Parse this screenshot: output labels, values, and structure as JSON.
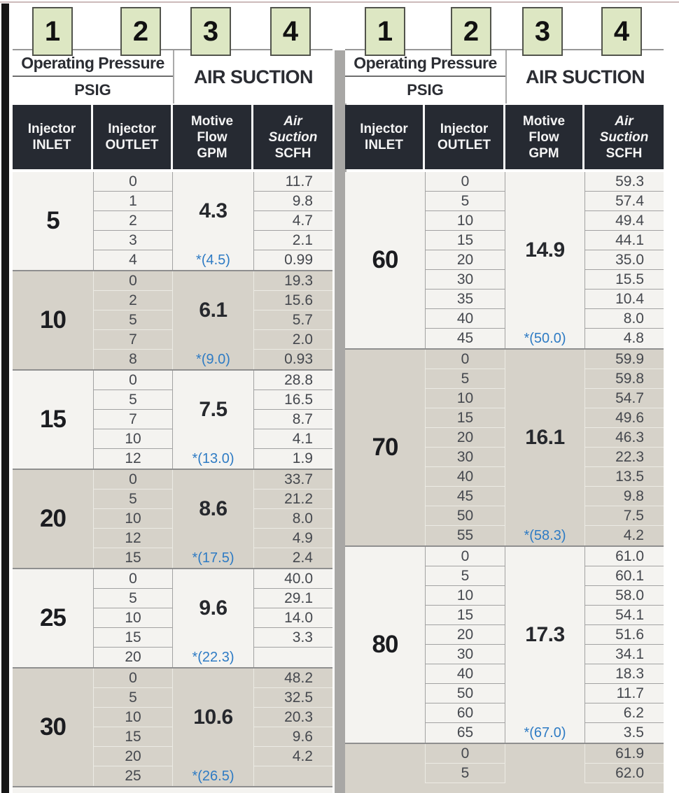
{
  "badges": [
    "1",
    "2",
    "3",
    "4"
  ],
  "colors": {
    "badge_fill": "#dde7c3",
    "badge_border": "#52544c",
    "dark_header": "#262a32",
    "group_light": "#f4f3f0",
    "group_shade": "#d6d2c9",
    "star_blue": "#2e7bc4",
    "divider_gray": "#a8a7a5"
  },
  "tables": [
    {
      "header": {
        "operating_pressure": "Operating Pressure",
        "psig": "PSIG",
        "air_suction": "AIR SUCTION",
        "columns": [
          {
            "lines": [
              "Injector",
              "INLET"
            ]
          },
          {
            "lines": [
              "Injector",
              "OUTLET"
            ]
          },
          {
            "lines": [
              "Motive",
              "Flow",
              "GPM"
            ]
          },
          {
            "lines": [
              "Air",
              "Suction",
              "SCFH"
            ]
          }
        ]
      },
      "groups": [
        {
          "inlet": "5",
          "gpm": "4.3",
          "star": "*(4.5)",
          "rows": [
            {
              "outlet": "0",
              "scfh": "11.7"
            },
            {
              "outlet": "1",
              "scfh": "9.8"
            },
            {
              "outlet": "2",
              "scfh": "4.7"
            },
            {
              "outlet": "3",
              "scfh": "2.1"
            },
            {
              "outlet": "4",
              "scfh": "0.99"
            }
          ]
        },
        {
          "inlet": "10",
          "gpm": "6.1",
          "star": "*(9.0)",
          "rows": [
            {
              "outlet": "0",
              "scfh": "19.3"
            },
            {
              "outlet": "2",
              "scfh": "15.6"
            },
            {
              "outlet": "5",
              "scfh": "5.7"
            },
            {
              "outlet": "7",
              "scfh": "2.0"
            },
            {
              "outlet": "8",
              "scfh": "0.93"
            }
          ]
        },
        {
          "inlet": "15",
          "gpm": "7.5",
          "star": "*(13.0)",
          "rows": [
            {
              "outlet": "0",
              "scfh": "28.8"
            },
            {
              "outlet": "5",
              "scfh": "16.5"
            },
            {
              "outlet": "7",
              "scfh": "8.7"
            },
            {
              "outlet": "10",
              "scfh": "4.1"
            },
            {
              "outlet": "12",
              "scfh": "1.9"
            }
          ]
        },
        {
          "inlet": "20",
          "gpm": "8.6",
          "star": "*(17.5)",
          "rows": [
            {
              "outlet": "0",
              "scfh": "33.7"
            },
            {
              "outlet": "5",
              "scfh": "21.2"
            },
            {
              "outlet": "10",
              "scfh": "8.0"
            },
            {
              "outlet": "12",
              "scfh": "4.9"
            },
            {
              "outlet": "15",
              "scfh": "2.4"
            }
          ]
        },
        {
          "inlet": "25",
          "gpm": "9.6",
          "star": "*(22.3)",
          "rows": [
            {
              "outlet": "0",
              "scfh": "40.0"
            },
            {
              "outlet": "5",
              "scfh": "29.1"
            },
            {
              "outlet": "10",
              "scfh": "14.0"
            },
            {
              "outlet": "15",
              "scfh": "3.3"
            },
            {
              "outlet": "20",
              "scfh": ""
            }
          ]
        },
        {
          "inlet": "30",
          "gpm": "10.6",
          "star": "*(26.5)",
          "rows": [
            {
              "outlet": "0",
              "scfh": "48.2"
            },
            {
              "outlet": "5",
              "scfh": "32.5"
            },
            {
              "outlet": "10",
              "scfh": "20.3"
            },
            {
              "outlet": "15",
              "scfh": "9.6"
            },
            {
              "outlet": "20",
              "scfh": "4.2"
            },
            {
              "outlet": "25",
              "scfh": ""
            }
          ]
        }
      ]
    },
    {
      "header": {
        "operating_pressure": "Operating Pressure",
        "psig": "PSIG",
        "air_suction": "AIR SUCTION",
        "columns": [
          {
            "lines": [
              "Injector",
              "INLET"
            ]
          },
          {
            "lines": [
              "Injector",
              "OUTLET"
            ]
          },
          {
            "lines": [
              "Motive",
              "Flow",
              "GPM"
            ]
          },
          {
            "lines": [
              "Air",
              "Suction",
              "SCFH"
            ]
          }
        ]
      },
      "groups": [
        {
          "inlet": "60",
          "gpm": "14.9",
          "star": "*(50.0)",
          "rows": [
            {
              "outlet": "0",
              "scfh": "59.3"
            },
            {
              "outlet": "5",
              "scfh": "57.4"
            },
            {
              "outlet": "10",
              "scfh": "49.4"
            },
            {
              "outlet": "15",
              "scfh": "44.1"
            },
            {
              "outlet": "20",
              "scfh": "35.0"
            },
            {
              "outlet": "30",
              "scfh": "15.5"
            },
            {
              "outlet": "35",
              "scfh": "10.4"
            },
            {
              "outlet": "40",
              "scfh": "8.0"
            },
            {
              "outlet": "45",
              "scfh": "4.8"
            }
          ]
        },
        {
          "inlet": "70",
          "gpm": "16.1",
          "star": "*(58.3)",
          "rows": [
            {
              "outlet": "0",
              "scfh": "59.9"
            },
            {
              "outlet": "5",
              "scfh": "59.8"
            },
            {
              "outlet": "10",
              "scfh": "54.7"
            },
            {
              "outlet": "15",
              "scfh": "49.6"
            },
            {
              "outlet": "20",
              "scfh": "46.3"
            },
            {
              "outlet": "30",
              "scfh": "22.3"
            },
            {
              "outlet": "40",
              "scfh": "13.5"
            },
            {
              "outlet": "45",
              "scfh": "9.8"
            },
            {
              "outlet": "50",
              "scfh": "7.5"
            },
            {
              "outlet": "55",
              "scfh": "4.2"
            }
          ]
        },
        {
          "inlet": "80",
          "gpm": "17.3",
          "star": "*(67.0)",
          "rows": [
            {
              "outlet": "0",
              "scfh": "61.0"
            },
            {
              "outlet": "5",
              "scfh": "60.1"
            },
            {
              "outlet": "10",
              "scfh": "58.0"
            },
            {
              "outlet": "15",
              "scfh": "54.1"
            },
            {
              "outlet": "20",
              "scfh": "51.6"
            },
            {
              "outlet": "30",
              "scfh": "34.1"
            },
            {
              "outlet": "40",
              "scfh": "18.3"
            },
            {
              "outlet": "50",
              "scfh": "11.7"
            },
            {
              "outlet": "60",
              "scfh": "6.2"
            },
            {
              "outlet": "65",
              "scfh": "3.5"
            }
          ]
        },
        {
          "inlet": "",
          "gpm": "",
          "star": "",
          "partial": true,
          "rows": [
            {
              "outlet": "0",
              "scfh": "61.9"
            },
            {
              "outlet": "5",
              "scfh": "62.0"
            }
          ]
        }
      ]
    }
  ]
}
